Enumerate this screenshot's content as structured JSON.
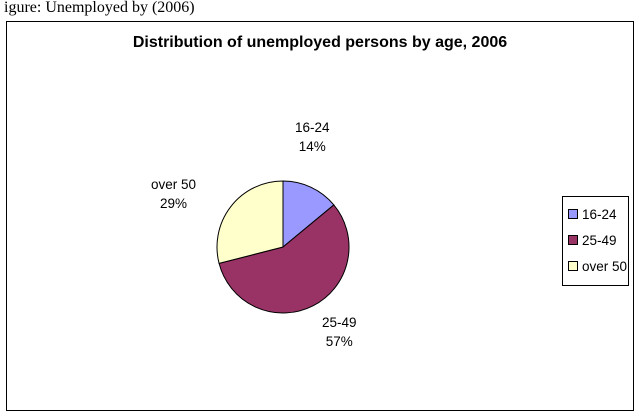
{
  "caption": "igure: Unemployed by (2006)",
  "chart_data": {
    "type": "pie",
    "title": "Distribution of unemployed persons by age, 2006",
    "categories": [
      "16-24",
      "25-49",
      "over 50"
    ],
    "values": [
      14,
      57,
      29
    ],
    "value_labels": [
      "14%",
      "57%",
      "29%"
    ],
    "colors": [
      "#9999ff",
      "#993366",
      "#ffffcc"
    ],
    "legend_position": "right"
  }
}
